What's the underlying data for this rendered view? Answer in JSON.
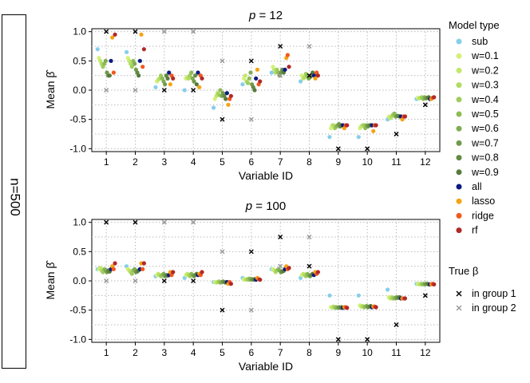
{
  "strip_label": "n=500",
  "x_label": "Variable ID",
  "y_label": "Mean β̂",
  "legend": {
    "title": "Model type",
    "entries": [
      {
        "name": "sub",
        "color": "#87ceeb"
      },
      {
        "name": "w=0.1",
        "color": "#d4f179"
      },
      {
        "name": "w=0.2",
        "color": "#c2e86b"
      },
      {
        "name": "w=0.3",
        "color": "#b0dc62"
      },
      {
        "name": "w=0.4",
        "color": "#9ecd5c"
      },
      {
        "name": "w=0.5",
        "color": "#8fbc57"
      },
      {
        "name": "w=0.6",
        "color": "#80ab50"
      },
      {
        "name": "w=0.7",
        "color": "#719a49"
      },
      {
        "name": "w=0.8",
        "color": "#638a43"
      },
      {
        "name": "w=0.9",
        "color": "#567b3c"
      },
      {
        "name": "all",
        "color": "#0a1a80"
      },
      {
        "name": "lasso",
        "color": "#f5a313"
      },
      {
        "name": "ridge",
        "color": "#f2581c"
      },
      {
        "name": "rf",
        "color": "#b22828"
      }
    ],
    "true_title": "True β",
    "true_entries": [
      {
        "name": "in group 1",
        "color": "#000000"
      },
      {
        "name": "in group 2",
        "color": "#999999"
      }
    ]
  },
  "chart_data": [
    {
      "type": "scatter",
      "title": "p = 12",
      "title_p": "p",
      "title_val": " = 12",
      "categories": [
        "1",
        "2",
        "3",
        "4",
        "5",
        "6",
        "7",
        "8",
        "9",
        "10",
        "11",
        "12"
      ],
      "xlabel": "Variable ID",
      "ylabel": "Mean β̂",
      "ylim": [
        -1.05,
        1.05
      ],
      "yticks": [
        -1.0,
        -0.5,
        0.0,
        0.5,
        1.0
      ],
      "ytick_labels": [
        "-1.0",
        "-0.5",
        "0.0",
        "0.5",
        "1.0"
      ],
      "true_beta": {
        "group1": [
          [
            1,
            1.0
          ],
          [
            2,
            1.0
          ],
          [
            3,
            0.0
          ],
          [
            4,
            0.0
          ],
          [
            5,
            -0.5
          ],
          [
            6,
            0.5
          ],
          [
            7,
            0.75
          ],
          [
            8,
            0.25
          ],
          [
            9,
            -1.0
          ],
          [
            10,
            -1.0
          ],
          [
            11,
            -0.75
          ],
          [
            12,
            -0.25
          ]
        ],
        "group2": [
          [
            1,
            0.0
          ],
          [
            2,
            0.0
          ],
          [
            3,
            1.0
          ],
          [
            4,
            1.0
          ],
          [
            5,
            0.5
          ],
          [
            6,
            -0.5
          ],
          [
            7,
            0.25
          ],
          [
            8,
            0.75
          ],
          [
            9,
            -1.0
          ],
          [
            10,
            -1.0
          ],
          [
            11,
            -0.75
          ],
          [
            12,
            -0.25
          ]
        ]
      },
      "mean_beta": {
        "sub": [
          0.7,
          0.65,
          0.05,
          0.0,
          -0.3,
          0.1,
          0.3,
          0.15,
          -0.8,
          -0.8,
          -0.5,
          -0.15
        ],
        "w=0.1": [
          0.55,
          0.55,
          0.15,
          0.2,
          -0.15,
          0.2,
          0.4,
          0.25,
          -0.65,
          -0.65,
          -0.45,
          -0.13
        ],
        "w=0.2": [
          0.5,
          0.5,
          0.18,
          0.22,
          -0.1,
          0.25,
          0.35,
          0.2,
          -0.6,
          -0.62,
          -0.48,
          -0.14
        ],
        "w=0.3": [
          0.45,
          0.45,
          0.2,
          0.2,
          -0.05,
          0.15,
          0.3,
          0.22,
          -0.6,
          -0.6,
          -0.45,
          -0.13
        ],
        "w=0.4": [
          0.4,
          0.4,
          0.25,
          0.25,
          -0.08,
          0.12,
          0.35,
          0.28,
          -0.65,
          -0.6,
          -0.42,
          -0.12
        ],
        "w=0.5": [
          0.45,
          0.5,
          0.2,
          0.3,
          0.0,
          0.2,
          0.3,
          0.25,
          -0.62,
          -0.65,
          -0.4,
          -0.15
        ],
        "w=0.6": [
          0.5,
          0.45,
          0.15,
          0.2,
          -0.1,
          0.3,
          0.25,
          0.2,
          -0.6,
          -0.6,
          -0.45,
          -0.12
        ],
        "w=0.7": [
          0.3,
          0.35,
          0.1,
          0.15,
          -0.05,
          0.1,
          0.3,
          0.22,
          -0.58,
          -0.62,
          -0.44,
          -0.14
        ],
        "w=0.8": [
          0.25,
          0.3,
          0.25,
          0.25,
          -0.1,
          0.05,
          0.35,
          0.25,
          -0.62,
          -0.6,
          -0.44,
          -0.13
        ],
        "w=0.9": [
          0.25,
          0.25,
          0.2,
          0.1,
          -0.15,
          0.0,
          0.3,
          0.3,
          -0.6,
          -0.6,
          -0.45,
          -0.12
        ],
        "all": [
          0.5,
          0.5,
          0.3,
          0.3,
          -0.05,
          0.2,
          0.35,
          0.25,
          -0.6,
          -0.6,
          -0.45,
          -0.15
        ],
        "lasso": [
          0.9,
          0.95,
          0.1,
          0.05,
          -0.25,
          0.35,
          0.55,
          0.2,
          -0.65,
          -0.7,
          -0.5,
          -0.15
        ],
        "ridge": [
          0.3,
          0.4,
          0.25,
          0.25,
          -0.15,
          0.1,
          0.6,
          0.3,
          -0.6,
          -0.6,
          -0.45,
          -0.13
        ],
        "rf": [
          0.95,
          0.7,
          0.2,
          0.2,
          -0.1,
          0.15,
          0.4,
          0.25,
          -0.6,
          -0.6,
          -0.45,
          -0.12
        ]
      }
    },
    {
      "type": "scatter",
      "title": "p = 100",
      "title_p": "p",
      "title_val": " = 100",
      "categories": [
        "1",
        "2",
        "3",
        "4",
        "5",
        "6",
        "7",
        "8",
        "9",
        "10",
        "11",
        "12"
      ],
      "xlabel": "Variable ID",
      "ylabel": "Mean β̂",
      "ylim": [
        -1.05,
        1.05
      ],
      "yticks": [
        -1.0,
        -0.5,
        0.0,
        0.5,
        1.0
      ],
      "ytick_labels": [
        "-1.0",
        "-0.5",
        "0.0",
        "0.5",
        "1.0"
      ],
      "true_beta": {
        "group1": [
          [
            1,
            1.0
          ],
          [
            2,
            1.0
          ],
          [
            3,
            0.0
          ],
          [
            4,
            0.0
          ],
          [
            5,
            -0.5
          ],
          [
            6,
            0.5
          ],
          [
            7,
            0.75
          ],
          [
            8,
            0.25
          ],
          [
            9,
            -1.0
          ],
          [
            10,
            -1.0
          ],
          [
            11,
            -0.75
          ],
          [
            12,
            -0.25
          ]
        ],
        "group2": [
          [
            1,
            0.0
          ],
          [
            2,
            0.0
          ],
          [
            3,
            1.0
          ],
          [
            4,
            1.0
          ],
          [
            5,
            0.5
          ],
          [
            6,
            -0.5
          ],
          [
            7,
            0.25
          ],
          [
            8,
            0.75
          ],
          [
            9,
            -1.0
          ],
          [
            10,
            -1.0
          ],
          [
            11,
            -0.75
          ],
          [
            12,
            -0.25
          ]
        ]
      },
      "mean_beta": {
        "sub": [
          0.2,
          0.25,
          0.08,
          0.05,
          -0.02,
          0.05,
          0.2,
          0.05,
          -0.25,
          -0.25,
          -0.15,
          -0.05
        ],
        "w=0.1": [
          0.2,
          0.2,
          0.1,
          0.1,
          -0.02,
          0.03,
          0.2,
          0.1,
          -0.45,
          -0.42,
          -0.28,
          -0.05
        ],
        "w=0.2": [
          0.22,
          0.18,
          0.12,
          0.12,
          -0.03,
          0.02,
          0.18,
          0.12,
          -0.45,
          -0.44,
          -0.3,
          -0.06
        ],
        "w=0.3": [
          0.18,
          0.15,
          0.1,
          0.1,
          -0.02,
          0.03,
          0.15,
          0.1,
          -0.44,
          -0.43,
          -0.28,
          -0.05
        ],
        "w=0.4": [
          0.15,
          0.12,
          0.08,
          0.08,
          -0.01,
          0.02,
          0.18,
          0.08,
          -0.46,
          -0.45,
          -0.3,
          -0.06
        ],
        "w=0.5": [
          0.2,
          0.18,
          0.1,
          0.12,
          -0.03,
          0.04,
          0.2,
          0.12,
          -0.45,
          -0.44,
          -0.29,
          -0.05
        ],
        "w=0.6": [
          0.18,
          0.2,
          0.12,
          0.1,
          -0.02,
          0.02,
          0.18,
          0.1,
          -0.46,
          -0.43,
          -0.3,
          -0.06
        ],
        "w=0.7": [
          0.15,
          0.15,
          0.08,
          0.08,
          -0.01,
          0.03,
          0.15,
          0.08,
          -0.45,
          -0.45,
          -0.28,
          -0.05
        ],
        "w=0.8": [
          0.18,
          0.16,
          0.1,
          0.1,
          -0.02,
          0.02,
          0.16,
          0.1,
          -0.46,
          -0.44,
          -0.29,
          -0.05
        ],
        "w=0.9": [
          0.16,
          0.18,
          0.09,
          0.12,
          -0.03,
          0.03,
          0.17,
          0.12,
          -0.45,
          -0.43,
          -0.28,
          -0.06
        ],
        "all": [
          0.2,
          0.2,
          0.1,
          0.1,
          -0.02,
          0.02,
          0.2,
          0.1,
          -0.46,
          -0.45,
          -0.3,
          -0.06
        ],
        "lasso": [
          0.25,
          0.3,
          0.15,
          0.12,
          -0.05,
          0.05,
          0.25,
          0.15,
          -0.45,
          -0.44,
          -0.3,
          -0.06
        ],
        "ridge": [
          0.2,
          0.2,
          0.1,
          0.1,
          -0.02,
          0.03,
          0.2,
          0.12,
          -0.45,
          -0.44,
          -0.3,
          -0.05
        ],
        "rf": [
          0.3,
          0.3,
          0.15,
          0.15,
          -0.05,
          0.02,
          0.22,
          0.15,
          -0.46,
          -0.45,
          -0.3,
          -0.06
        ]
      }
    }
  ]
}
